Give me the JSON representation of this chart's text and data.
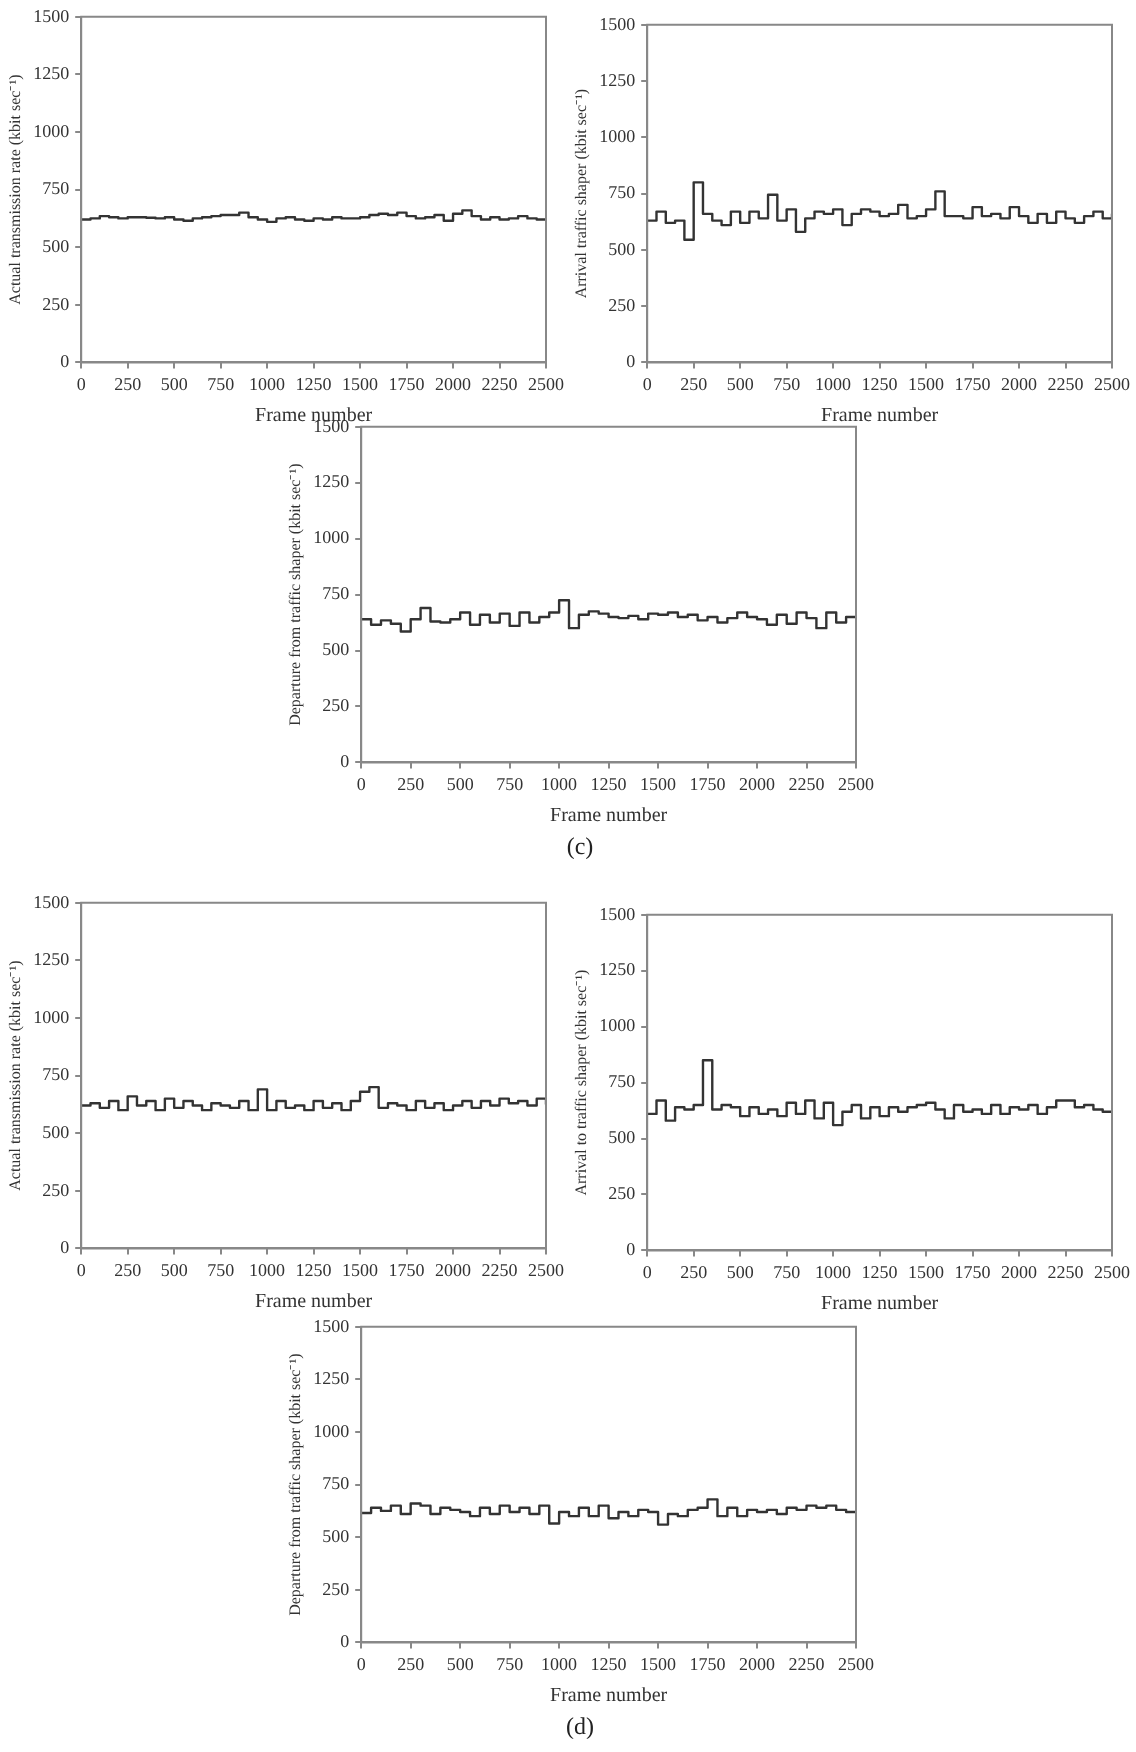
{
  "chart_data": [
    {
      "type": "step",
      "xlabel": "Frame number",
      "ylabel": "Actual transmission rate (kbit sec⁻¹)",
      "color": "#333333",
      "grid": false,
      "xlim": [
        0,
        2500
      ],
      "xticks": [
        0,
        250,
        500,
        750,
        1000,
        1250,
        1500,
        1750,
        2000,
        2250,
        2500
      ],
      "ylim": [
        0,
        1500
      ],
      "yticks": [
        0,
        250,
        500,
        750,
        1000,
        1250,
        1500
      ],
      "x": [
        0,
        50,
        100,
        150,
        200,
        250,
        300,
        350,
        400,
        450,
        500,
        550,
        600,
        650,
        700,
        750,
        800,
        850,
        900,
        950,
        1000,
        1050,
        1100,
        1150,
        1200,
        1250,
        1300,
        1350,
        1400,
        1450,
        1500,
        1550,
        1600,
        1650,
        1700,
        1750,
        1800,
        1850,
        1900,
        1950,
        2000,
        2050,
        2100,
        2150,
        2200,
        2250,
        2300,
        2350,
        2400,
        2450,
        2500
      ],
      "values": [
        620,
        625,
        635,
        630,
        625,
        630,
        630,
        628,
        625,
        630,
        620,
        615,
        625,
        630,
        635,
        640,
        640,
        650,
        630,
        620,
        610,
        625,
        630,
        620,
        615,
        625,
        620,
        630,
        625,
        625,
        630,
        640,
        645,
        640,
        650,
        635,
        625,
        630,
        640,
        615,
        645,
        660,
        635,
        620,
        630,
        620,
        625,
        635,
        625,
        620,
        625
      ]
    },
    {
      "type": "step",
      "xlabel": "Frame number",
      "ylabel": "Arrival traffic shaper (kbit sec⁻¹)",
      "color": "#333333",
      "grid": false,
      "xlim": [
        0,
        2500
      ],
      "xticks": [
        0,
        250,
        500,
        750,
        1000,
        1250,
        1500,
        1750,
        2000,
        2250,
        2500
      ],
      "ylim": [
        0,
        1500
      ],
      "yticks": [
        0,
        250,
        500,
        750,
        1000,
        1250,
        1500
      ],
      "x": [
        0,
        50,
        100,
        150,
        200,
        250,
        300,
        350,
        400,
        450,
        500,
        550,
        600,
        650,
        700,
        750,
        800,
        850,
        900,
        950,
        1000,
        1050,
        1100,
        1150,
        1200,
        1250,
        1300,
        1350,
        1400,
        1450,
        1500,
        1550,
        1600,
        1650,
        1700,
        1750,
        1800,
        1850,
        1900,
        1950,
        2000,
        2050,
        2100,
        2150,
        2200,
        2250,
        2300,
        2350,
        2400,
        2450,
        2500
      ],
      "values": [
        630,
        670,
        620,
        630,
        545,
        800,
        660,
        630,
        610,
        670,
        620,
        670,
        640,
        745,
        630,
        680,
        580,
        640,
        670,
        660,
        680,
        610,
        660,
        680,
        670,
        650,
        660,
        700,
        640,
        650,
        680,
        760,
        650,
        650,
        640,
        690,
        650,
        660,
        640,
        690,
        650,
        620,
        660,
        620,
        670,
        640,
        620,
        650,
        670,
        640,
        660
      ]
    },
    {
      "type": "step",
      "xlabel": "Frame number",
      "ylabel": "Departure from traffic shaper (kbit sec⁻¹)",
      "color": "#333333",
      "grid": false,
      "xlim": [
        0,
        2500
      ],
      "xticks": [
        0,
        250,
        500,
        750,
        1000,
        1250,
        1500,
        1750,
        2000,
        2250,
        2500
      ],
      "ylim": [
        0,
        1500
      ],
      "yticks": [
        0,
        250,
        500,
        750,
        1000,
        1250,
        1500
      ],
      "annotations": [
        "(c)"
      ],
      "x": [
        0,
        50,
        100,
        150,
        200,
        250,
        300,
        350,
        400,
        450,
        500,
        550,
        600,
        650,
        700,
        750,
        800,
        850,
        900,
        950,
        1000,
        1050,
        1100,
        1150,
        1200,
        1250,
        1300,
        1350,
        1400,
        1450,
        1500,
        1550,
        1600,
        1650,
        1700,
        1750,
        1800,
        1850,
        1900,
        1950,
        2000,
        2050,
        2100,
        2150,
        2200,
        2250,
        2300,
        2350,
        2400,
        2450,
        2500
      ],
      "values": [
        640,
        615,
        635,
        620,
        585,
        640,
        690,
        630,
        625,
        640,
        670,
        615,
        660,
        625,
        665,
        610,
        670,
        625,
        650,
        670,
        725,
        600,
        660,
        675,
        665,
        650,
        645,
        655,
        640,
        665,
        660,
        670,
        650,
        660,
        635,
        650,
        625,
        645,
        670,
        650,
        640,
        615,
        660,
        620,
        670,
        645,
        600,
        670,
        625,
        650,
        650
      ]
    },
    {
      "type": "step",
      "xlabel": "Frame number",
      "ylabel": "Actual transmission rate (kbit sec⁻¹)",
      "color": "#333333",
      "grid": false,
      "xlim": [
        0,
        2500
      ],
      "xticks": [
        0,
        250,
        500,
        750,
        1000,
        1250,
        1500,
        1750,
        2000,
        2250,
        2500
      ],
      "ylim": [
        0,
        1500
      ],
      "yticks": [
        0,
        250,
        500,
        750,
        1000,
        1250,
        1500
      ],
      "x": [
        0,
        50,
        100,
        150,
        200,
        250,
        300,
        350,
        400,
        450,
        500,
        550,
        600,
        650,
        700,
        750,
        800,
        850,
        900,
        950,
        1000,
        1050,
        1100,
        1150,
        1200,
        1250,
        1300,
        1350,
        1400,
        1450,
        1500,
        1550,
        1600,
        1650,
        1700,
        1750,
        1800,
        1850,
        1900,
        1950,
        2000,
        2050,
        2100,
        2150,
        2200,
        2250,
        2300,
        2350,
        2400,
        2450,
        2500
      ],
      "values": [
        620,
        630,
        610,
        640,
        600,
        660,
        620,
        640,
        600,
        650,
        610,
        640,
        620,
        600,
        630,
        620,
        610,
        640,
        600,
        690,
        600,
        640,
        610,
        620,
        600,
        640,
        610,
        630,
        600,
        640,
        680,
        700,
        610,
        630,
        620,
        600,
        640,
        610,
        630,
        600,
        620,
        640,
        610,
        640,
        620,
        650,
        630,
        640,
        620,
        650,
        625
      ]
    },
    {
      "type": "step",
      "xlabel": "Frame number",
      "ylabel": "Arrival to traffic shaper (kbit sec⁻¹)",
      "color": "#333333",
      "grid": false,
      "xlim": [
        0,
        2500
      ],
      "xticks": [
        0,
        250,
        500,
        750,
        1000,
        1250,
        1500,
        1750,
        2000,
        2250,
        2500
      ],
      "ylim": [
        0,
        1500
      ],
      "yticks": [
        0,
        250,
        500,
        750,
        1000,
        1250,
        1500
      ],
      "x": [
        0,
        50,
        100,
        150,
        200,
        250,
        300,
        350,
        400,
        450,
        500,
        550,
        600,
        650,
        700,
        750,
        800,
        850,
        900,
        950,
        1000,
        1050,
        1100,
        1150,
        1200,
        1250,
        1300,
        1350,
        1400,
        1450,
        1500,
        1550,
        1600,
        1650,
        1700,
        1750,
        1800,
        1850,
        1900,
        1950,
        2000,
        2050,
        2100,
        2150,
        2200,
        2250,
        2300,
        2350,
        2400,
        2450,
        2500
      ],
      "values": [
        610,
        670,
        580,
        640,
        630,
        650,
        850,
        630,
        650,
        640,
        600,
        640,
        610,
        630,
        600,
        660,
        610,
        670,
        590,
        660,
        560,
        620,
        650,
        590,
        640,
        600,
        640,
        620,
        640,
        650,
        660,
        630,
        590,
        650,
        620,
        630,
        610,
        650,
        610,
        640,
        630,
        650,
        610,
        640,
        670,
        670,
        640,
        650,
        630,
        620,
        615
      ]
    },
    {
      "type": "step",
      "xlabel": "Frame number",
      "ylabel": "Departure from traffic shaper (kbit sec⁻¹)",
      "color": "#333333",
      "grid": false,
      "xlim": [
        0,
        2500
      ],
      "xticks": [
        0,
        250,
        500,
        750,
        1000,
        1250,
        1500,
        1750,
        2000,
        2250,
        2500
      ],
      "ylim": [
        0,
        1500
      ],
      "yticks": [
        0,
        250,
        500,
        750,
        1000,
        1250,
        1500
      ],
      "annotations": [
        "(d)"
      ],
      "x": [
        0,
        50,
        100,
        150,
        200,
        250,
        300,
        350,
        400,
        450,
        500,
        550,
        600,
        650,
        700,
        750,
        800,
        850,
        900,
        950,
        1000,
        1050,
        1100,
        1150,
        1200,
        1250,
        1300,
        1350,
        1400,
        1450,
        1500,
        1550,
        1600,
        1650,
        1700,
        1750,
        1800,
        1850,
        1900,
        1950,
        2000,
        2050,
        2100,
        2150,
        2200,
        2250,
        2300,
        2350,
        2400,
        2450,
        2500
      ],
      "values": [
        615,
        640,
        625,
        650,
        610,
        660,
        650,
        610,
        640,
        630,
        620,
        600,
        640,
        610,
        650,
        620,
        640,
        610,
        650,
        565,
        620,
        600,
        640,
        600,
        650,
        590,
        620,
        600,
        630,
        620,
        560,
        610,
        600,
        630,
        640,
        680,
        600,
        640,
        600,
        630,
        620,
        630,
        610,
        640,
        630,
        650,
        640,
        650,
        630,
        620,
        625
      ]
    }
  ]
}
